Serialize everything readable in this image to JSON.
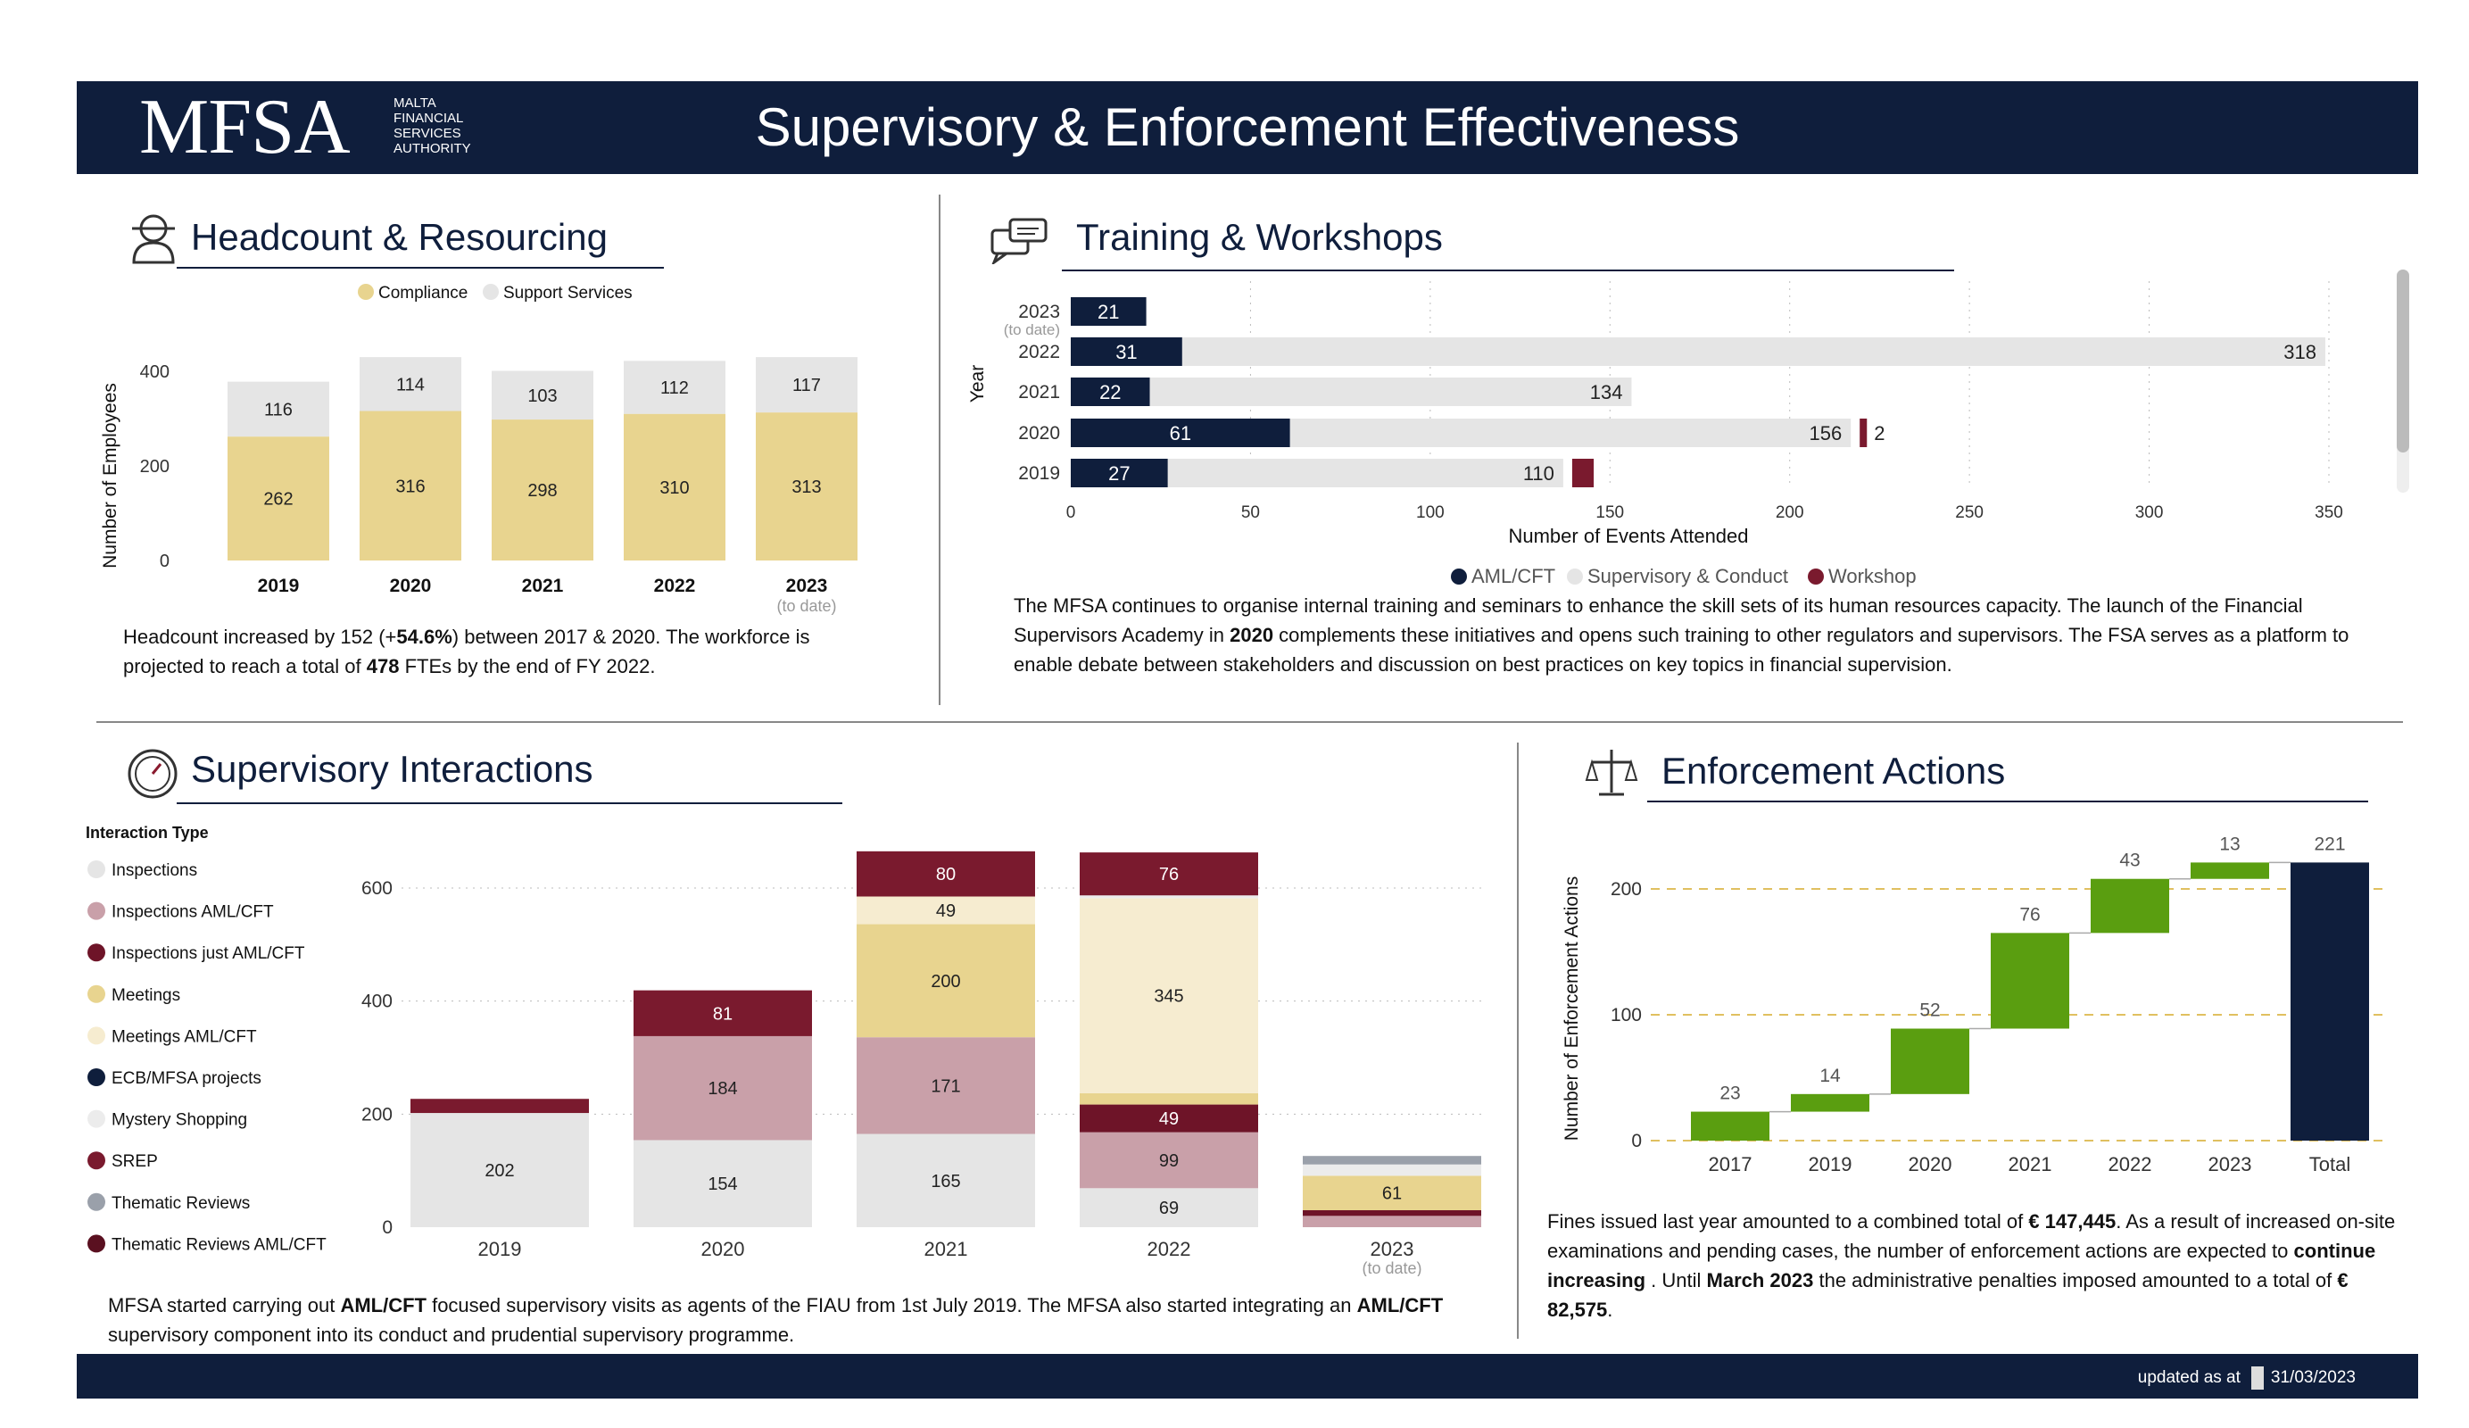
{
  "header": {
    "logo": "MFSA",
    "logo_lines": [
      "MALTA",
      "FINANCIAL",
      "SERVICES",
      "AUTHORITY"
    ],
    "title": "Supervisory & Enforcement Effectiveness"
  },
  "footer": {
    "updated_label": "updated as at",
    "updated_date": "31/03/2023"
  },
  "headcount": {
    "title": "Headcount & Resourcing",
    "text_parts": [
      "Headcount increased by 152 (+",
      "54.6%",
      ") between 2017 & 2020. The workforce is projected to reach a total of ",
      "478",
      " FTEs by the end of FY 2022."
    ]
  },
  "training": {
    "title": "Training & Workshops",
    "text_parts": [
      "The MFSA continues to organise internal training and seminars to enhance the skill sets of its human resources capacity. The launch of the Financial Supervisors Academy in ",
      "2020",
      " complements these initiatives and opens such training to other regulators and supervisors. The FSA serves as a platform to enable debate between stakeholders and discussion on best practices on key topics in financial supervision."
    ]
  },
  "interactions": {
    "title": "Supervisory Interactions",
    "text_parts": [
      "MFSA started carrying out ",
      "AML/CFT",
      " focused supervisory visits as agents of the FIAU from 1st July 2019. The MFSA also started integrating an ",
      "AML/CFT",
      " supervisory component into its conduct and prudential supervisory programme."
    ]
  },
  "enforcement": {
    "title": "Enforcement Actions",
    "text_parts": [
      "Fines issued last year amounted to a combined total of ",
      "€ 147,445",
      ". As a result of increased on-site examinations and pending cases, the number of enforcement actions are expected to ",
      "continue increasing",
      " . Until ",
      "March 2023",
      " the administrative penalties imposed amounted to a total of ",
      "€ 82,575",
      "."
    ]
  },
  "chart_data": [
    {
      "id": "headcount",
      "type": "bar",
      "stacked": true,
      "categories": [
        "2019",
        "2020",
        "2021",
        "2022",
        "2023"
      ],
      "category_note": {
        "2023": "(to date)"
      },
      "series": [
        {
          "name": "Compliance",
          "color": "#e8d48f",
          "values": [
            262,
            316,
            298,
            310,
            313
          ]
        },
        {
          "name": "Support Services",
          "color": "#e5e5e5",
          "values": [
            116,
            114,
            103,
            112,
            117
          ]
        }
      ],
      "ylabel": "Number of Employees",
      "yticks": [
        0,
        200,
        400
      ],
      "ylim": [
        0,
        450
      ],
      "legend": "top"
    },
    {
      "id": "training",
      "type": "bar",
      "orientation": "horizontal",
      "stacked": true,
      "categories": [
        "2023",
        "2022",
        "2021",
        "2020",
        "2019"
      ],
      "category_note": {
        "2023": "(to date)"
      },
      "series": [
        {
          "name": "AML/CFT",
          "color": "#0f1e3c",
          "values": [
            21,
            31,
            22,
            61,
            27
          ]
        },
        {
          "name": "Supervisory & Conduct",
          "color": "#e5e5e5",
          "values": [
            null,
            318,
            134,
            156,
            110
          ]
        },
        {
          "name": "Workshop",
          "color": "#7a1a2e",
          "values": [
            null,
            null,
            null,
            2,
            6
          ]
        }
      ],
      "xlabel": "Number of Events Attended",
      "ylabel": "Year",
      "xticks": [
        0,
        50,
        100,
        150,
        200,
        250,
        300,
        350
      ],
      "xlim": [
        0,
        350
      ],
      "legend": "bottom"
    },
    {
      "id": "interactions",
      "type": "bar",
      "stacked": true,
      "categories": [
        "2019",
        "2020",
        "2021",
        "2022",
        "2023"
      ],
      "category_note": {
        "2023": "(to date)"
      },
      "legend_title": "Interaction Type",
      "series": [
        {
          "name": "Inspections",
          "color": "#e5e5e5",
          "values": [
            202,
            154,
            165,
            69,
            0
          ]
        },
        {
          "name": "Inspections  AML/CFT",
          "color": "#c9a0a9",
          "values": [
            0,
            184,
            171,
            99,
            20
          ]
        },
        {
          "name": "Inspections just AML/CFT",
          "color": "#6e1428",
          "values": [
            0,
            0,
            0,
            49,
            10
          ]
        },
        {
          "name": "Meetings",
          "color": "#e8d48f",
          "values": [
            0,
            0,
            200,
            20,
            61
          ]
        },
        {
          "name": "Meetings  AML/CFT",
          "color": "#f6ecd0",
          "values": [
            0,
            0,
            49,
            345,
            0
          ]
        },
        {
          "name": "ECB/MFSA projects",
          "color": "#0f1e3c",
          "values": [
            0,
            0,
            0,
            0,
            0
          ]
        },
        {
          "name": "Mystery Shopping",
          "color": "#ececec",
          "values": [
            0,
            0,
            0,
            5,
            20
          ]
        },
        {
          "name": "SREP",
          "color": "#7a1a2e",
          "values": [
            25,
            81,
            80,
            76,
            0
          ]
        },
        {
          "name": "Thematic Reviews",
          "color": "#9aa0aa",
          "values": [
            0,
            0,
            0,
            0,
            15
          ]
        },
        {
          "name": "Thematic Reviews   AML/CFT",
          "color": "#5a1020",
          "values": [
            0,
            0,
            0,
            0,
            0
          ]
        }
      ],
      "yticks": [
        0,
        200,
        400,
        600
      ],
      "ylim": [
        0,
        650
      ],
      "legend": "left"
    },
    {
      "id": "enforcement",
      "type": "bar",
      "subtype": "waterfall",
      "categories": [
        "2017",
        "2019",
        "2020",
        "2021",
        "2022",
        "2023",
        "Total"
      ],
      "values": [
        23,
        14,
        52,
        76,
        43,
        13,
        221
      ],
      "colors": {
        "increase": "#5a9e10",
        "total": "#0f1e3c"
      },
      "ylabel": "Number of Enforcement Actions",
      "yticks": [
        0,
        100,
        200
      ],
      "ylim": [
        0,
        240
      ]
    }
  ]
}
